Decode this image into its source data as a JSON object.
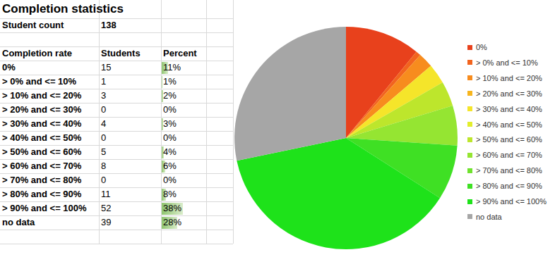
{
  "table": {
    "title": "Completion statistics",
    "student_count_label": "Student count",
    "student_count": 138,
    "headers": [
      "Completion rate",
      "Students",
      "Percent"
    ],
    "percents": [
      {
        "value": 11,
        "label": "11%"
      },
      {
        "value": 1,
        "label": "1%"
      },
      {
        "value": 2,
        "label": "2%"
      },
      {
        "value": 0,
        "label": "0%"
      },
      {
        "value": 3,
        "label": "3%"
      },
      {
        "value": 0,
        "label": "0%"
      },
      {
        "value": 4,
        "label": "4%"
      },
      {
        "value": 6,
        "label": "6%"
      },
      {
        "value": 0,
        "label": "0%"
      },
      {
        "value": 8,
        "label": "8%"
      },
      {
        "value": 38,
        "label": "38%"
      },
      {
        "value": 28,
        "label": "28%"
      }
    ]
  },
  "chart_data": {
    "type": "pie",
    "categories": [
      "0%",
      "> 0% and <= 10%",
      "> 10% and <= 20%",
      "> 20% and <= 30%",
      "> 30% and <= 40%",
      "> 40% and <= 50%",
      "> 50% and <= 60%",
      "> 60% and <= 70%",
      "> 70% and <= 80%",
      "> 80% and <= 90%",
      "> 90% and <= 100%",
      "no data"
    ],
    "values": [
      15,
      1,
      3,
      0,
      4,
      0,
      5,
      8,
      0,
      11,
      52,
      39
    ],
    "colors": [
      "#e8411c",
      "#f2641e",
      "#f78c1e",
      "#f7b51e",
      "#f5e52a",
      "#e2ee2c",
      "#bde62c",
      "#95e532",
      "#6fe22e",
      "#3fe024",
      "#1ee21a",
      "#a6a6a6"
    ],
    "legend": "right"
  }
}
